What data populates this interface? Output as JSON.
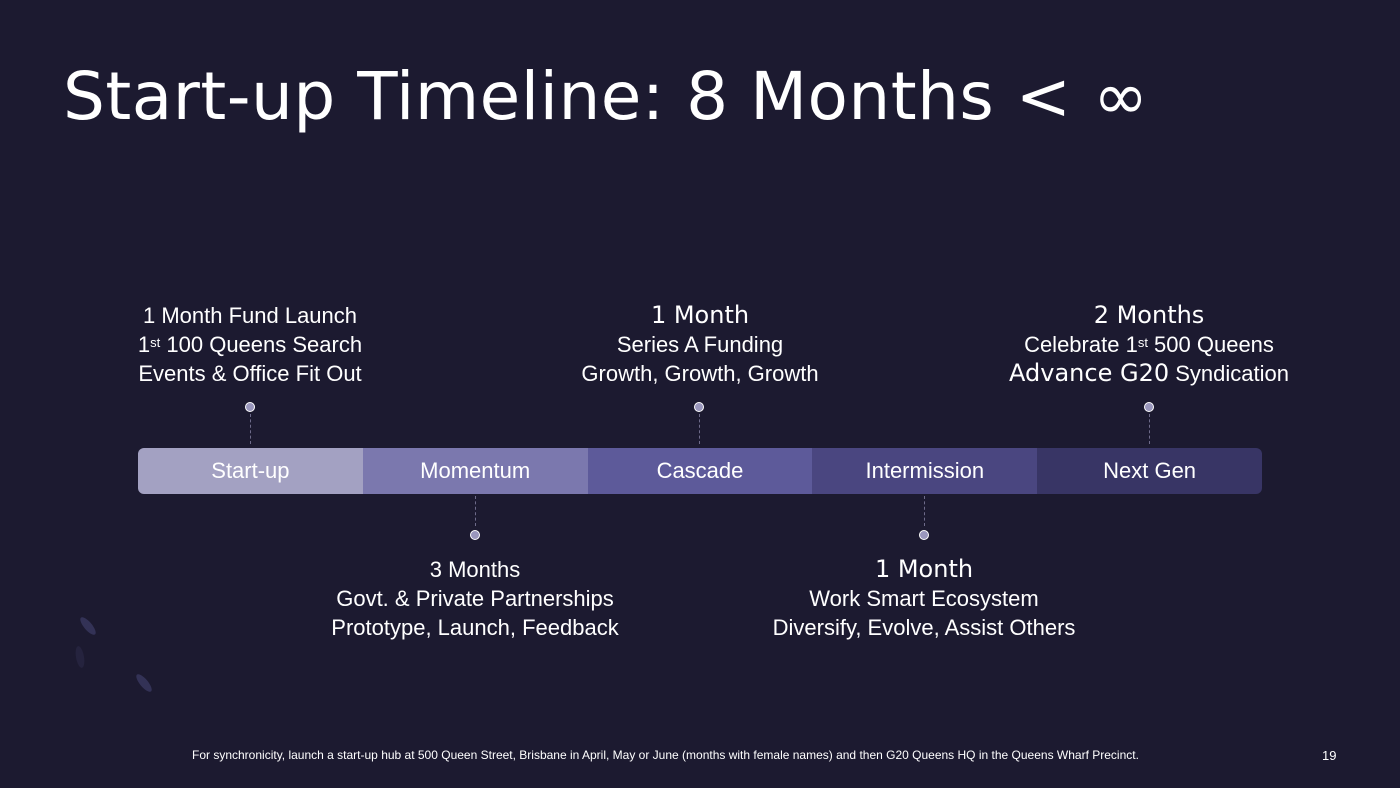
{
  "title": "Start-up Timeline: 8 Months < ∞",
  "phases": [
    {
      "label": "Start-up",
      "color": "#a3a1c2"
    },
    {
      "label": "Momentum",
      "color": "#7b78ae"
    },
    {
      "label": "Cascade",
      "color": "#5d5a9a"
    },
    {
      "label": "Intermission",
      "color": "#4a4680"
    },
    {
      "label": "Next Gen",
      "color": "#383565"
    }
  ],
  "milestones": {
    "startup": {
      "line1": "1 Month Fund Launch",
      "line2_pre": "1",
      "line2_sup": "st",
      "line2_post": " 100 Queens Search",
      "line3": "Events & Office Fit Out"
    },
    "momentum": {
      "line1": "3 Months",
      "line2": "Govt. & Private Partnerships",
      "line3": "Prototype, Launch, Feedback"
    },
    "cascade": {
      "line1": "1 Month",
      "line2": "Series A Funding",
      "line3": "Growth, Growth, Growth"
    },
    "intermission": {
      "line1": "1 Month",
      "line2": "Work Smart Ecosystem",
      "line3": "Diversify, Evolve, Assist Others"
    },
    "nextgen": {
      "line1": "2 Months",
      "line2_pre": "Celebrate 1",
      "line2_sup": "st",
      "line2_post": " 500 Queens",
      "line3_big": "Advance G20",
      "line3_rest": " Syndication"
    }
  },
  "footer": "For synchronicity, launch a start-up hub at 500 Queen Street, Brisbane in April, May or June (months with female names) and then G20 Queens HQ in the Queens Wharf Precinct.",
  "page_number": "19"
}
